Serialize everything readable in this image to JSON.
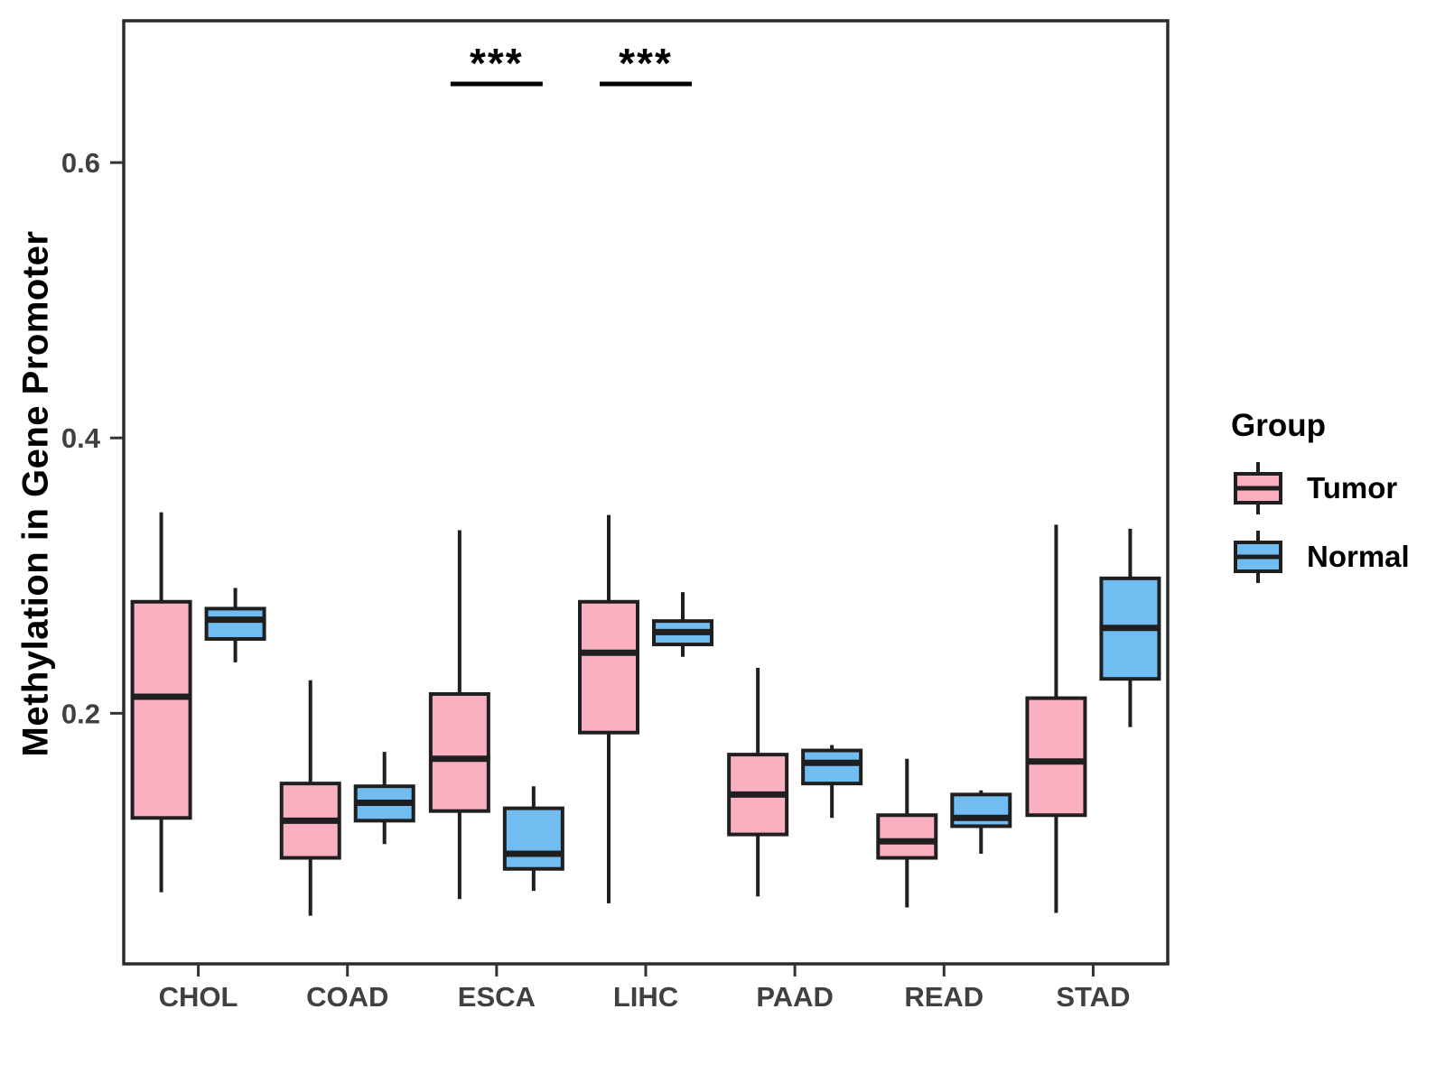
{
  "figure": {
    "background": "#FFFFFF"
  },
  "chart_data": {
    "type": "boxplot",
    "title": "",
    "xlabel": "",
    "ylabel": "Methylation in Gene Promoter",
    "categories": [
      "CHOL",
      "COAD",
      "ESCA",
      "LIHC",
      "PAAD",
      "READ",
      "STAD"
    ],
    "y_ticks": [
      0.2,
      0.4,
      0.6
    ],
    "y_tick_labels": [
      "0.2",
      "0.4",
      "0.6"
    ],
    "ylim": [
      0.018,
      0.703
    ],
    "grid": "off",
    "legend": {
      "title": "Group",
      "position": "right"
    },
    "series": [
      {
        "name": "Tumor",
        "color": "#FBB0C1",
        "stats": [
          [
            0.07,
            0.124,
            0.212,
            0.281,
            0.346
          ],
          [
            0.053,
            0.095,
            0.122,
            0.149,
            0.224
          ],
          [
            0.065,
            0.129,
            0.167,
            0.214,
            0.333
          ],
          [
            0.062,
            0.186,
            0.244,
            0.281,
            0.344
          ],
          [
            0.067,
            0.112,
            0.141,
            0.17,
            0.233
          ],
          [
            0.059,
            0.095,
            0.107,
            0.126,
            0.167
          ],
          [
            0.055,
            0.126,
            0.165,
            0.211,
            0.337
          ]
        ]
      },
      {
        "name": "Normal",
        "color": "#71BCF1",
        "stats": [
          [
            0.237,
            0.254,
            0.268,
            0.276,
            0.291
          ],
          [
            0.105,
            0.122,
            0.135,
            0.147,
            0.172
          ],
          [
            0.071,
            0.087,
            0.098,
            0.131,
            0.147
          ],
          [
            0.241,
            0.25,
            0.259,
            0.267,
            0.288
          ],
          [
            0.124,
            0.149,
            0.164,
            0.173,
            0.177
          ],
          [
            0.098,
            0.118,
            0.124,
            0.141,
            0.144
          ],
          [
            0.19,
            0.225,
            0.262,
            0.298,
            0.334
          ]
        ]
      }
    ],
    "annotations": [
      {
        "category": "ESCA",
        "label": "***"
      },
      {
        "category": "LIHC",
        "label": "***"
      }
    ],
    "style": {
      "panel_border": "#2B2B2B",
      "box_stroke": "#1F1F1F",
      "tick_color": "#333333",
      "axis_text_color": "#404040",
      "annotation_color": "#000000"
    }
  }
}
